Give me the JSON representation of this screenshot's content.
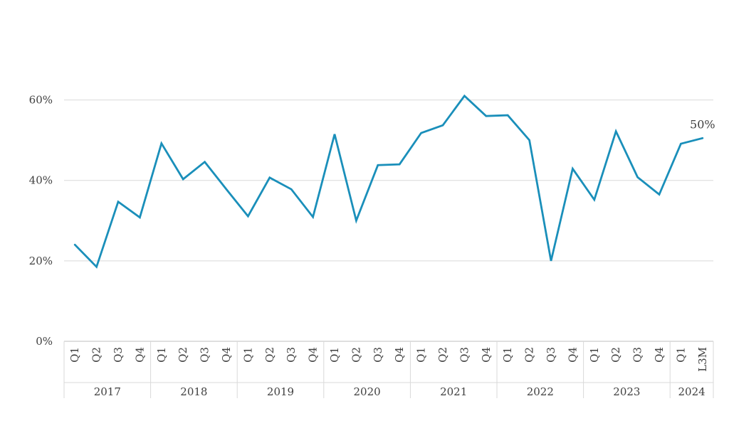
{
  "chart_data": {
    "type": "line",
    "title": "",
    "xlabel": "",
    "ylabel": "",
    "ylim": [
      0,
      0.7
    ],
    "yticks": [
      0,
      0.2,
      0.4,
      0.6
    ],
    "ytick_labels": [
      "0%",
      "20%",
      "40%",
      "60%"
    ],
    "grid": true,
    "categories": [
      "Q1",
      "Q2",
      "Q3",
      "Q4",
      "Q1",
      "Q2",
      "Q3",
      "Q4",
      "Q1",
      "Q2",
      "Q3",
      "Q4",
      "Q1",
      "Q2",
      "Q3",
      "Q4",
      "Q1",
      "Q2",
      "Q3",
      "Q4",
      "Q1",
      "Q2",
      "Q3",
      "Q4",
      "Q1",
      "Q2",
      "Q3",
      "Q4",
      "Q1",
      "L3M"
    ],
    "groups": [
      {
        "label": "2017",
        "count": 4
      },
      {
        "label": "2018",
        "count": 4
      },
      {
        "label": "2019",
        "count": 4
      },
      {
        "label": "2020",
        "count": 4
      },
      {
        "label": "2021",
        "count": 4
      },
      {
        "label": "2022",
        "count": 4
      },
      {
        "label": "2023",
        "count": 4
      },
      {
        "label": "2024",
        "count": 2
      }
    ],
    "series": [
      {
        "values": [
          0.24,
          0.185,
          0.347,
          0.308,
          0.492,
          0.403,
          0.446,
          0.378,
          0.311,
          0.407,
          0.378,
          0.309,
          0.515,
          0.3,
          0.438,
          0.44,
          0.518,
          0.537,
          0.61,
          0.56,
          0.562,
          0.5,
          0.2,
          0.429,
          0.352,
          0.522,
          0.408,
          0.365,
          0.491,
          0.505
        ],
        "color": "#1a8fba"
      }
    ],
    "annotations": [
      {
        "text": "50%",
        "index": 29
      }
    ]
  }
}
